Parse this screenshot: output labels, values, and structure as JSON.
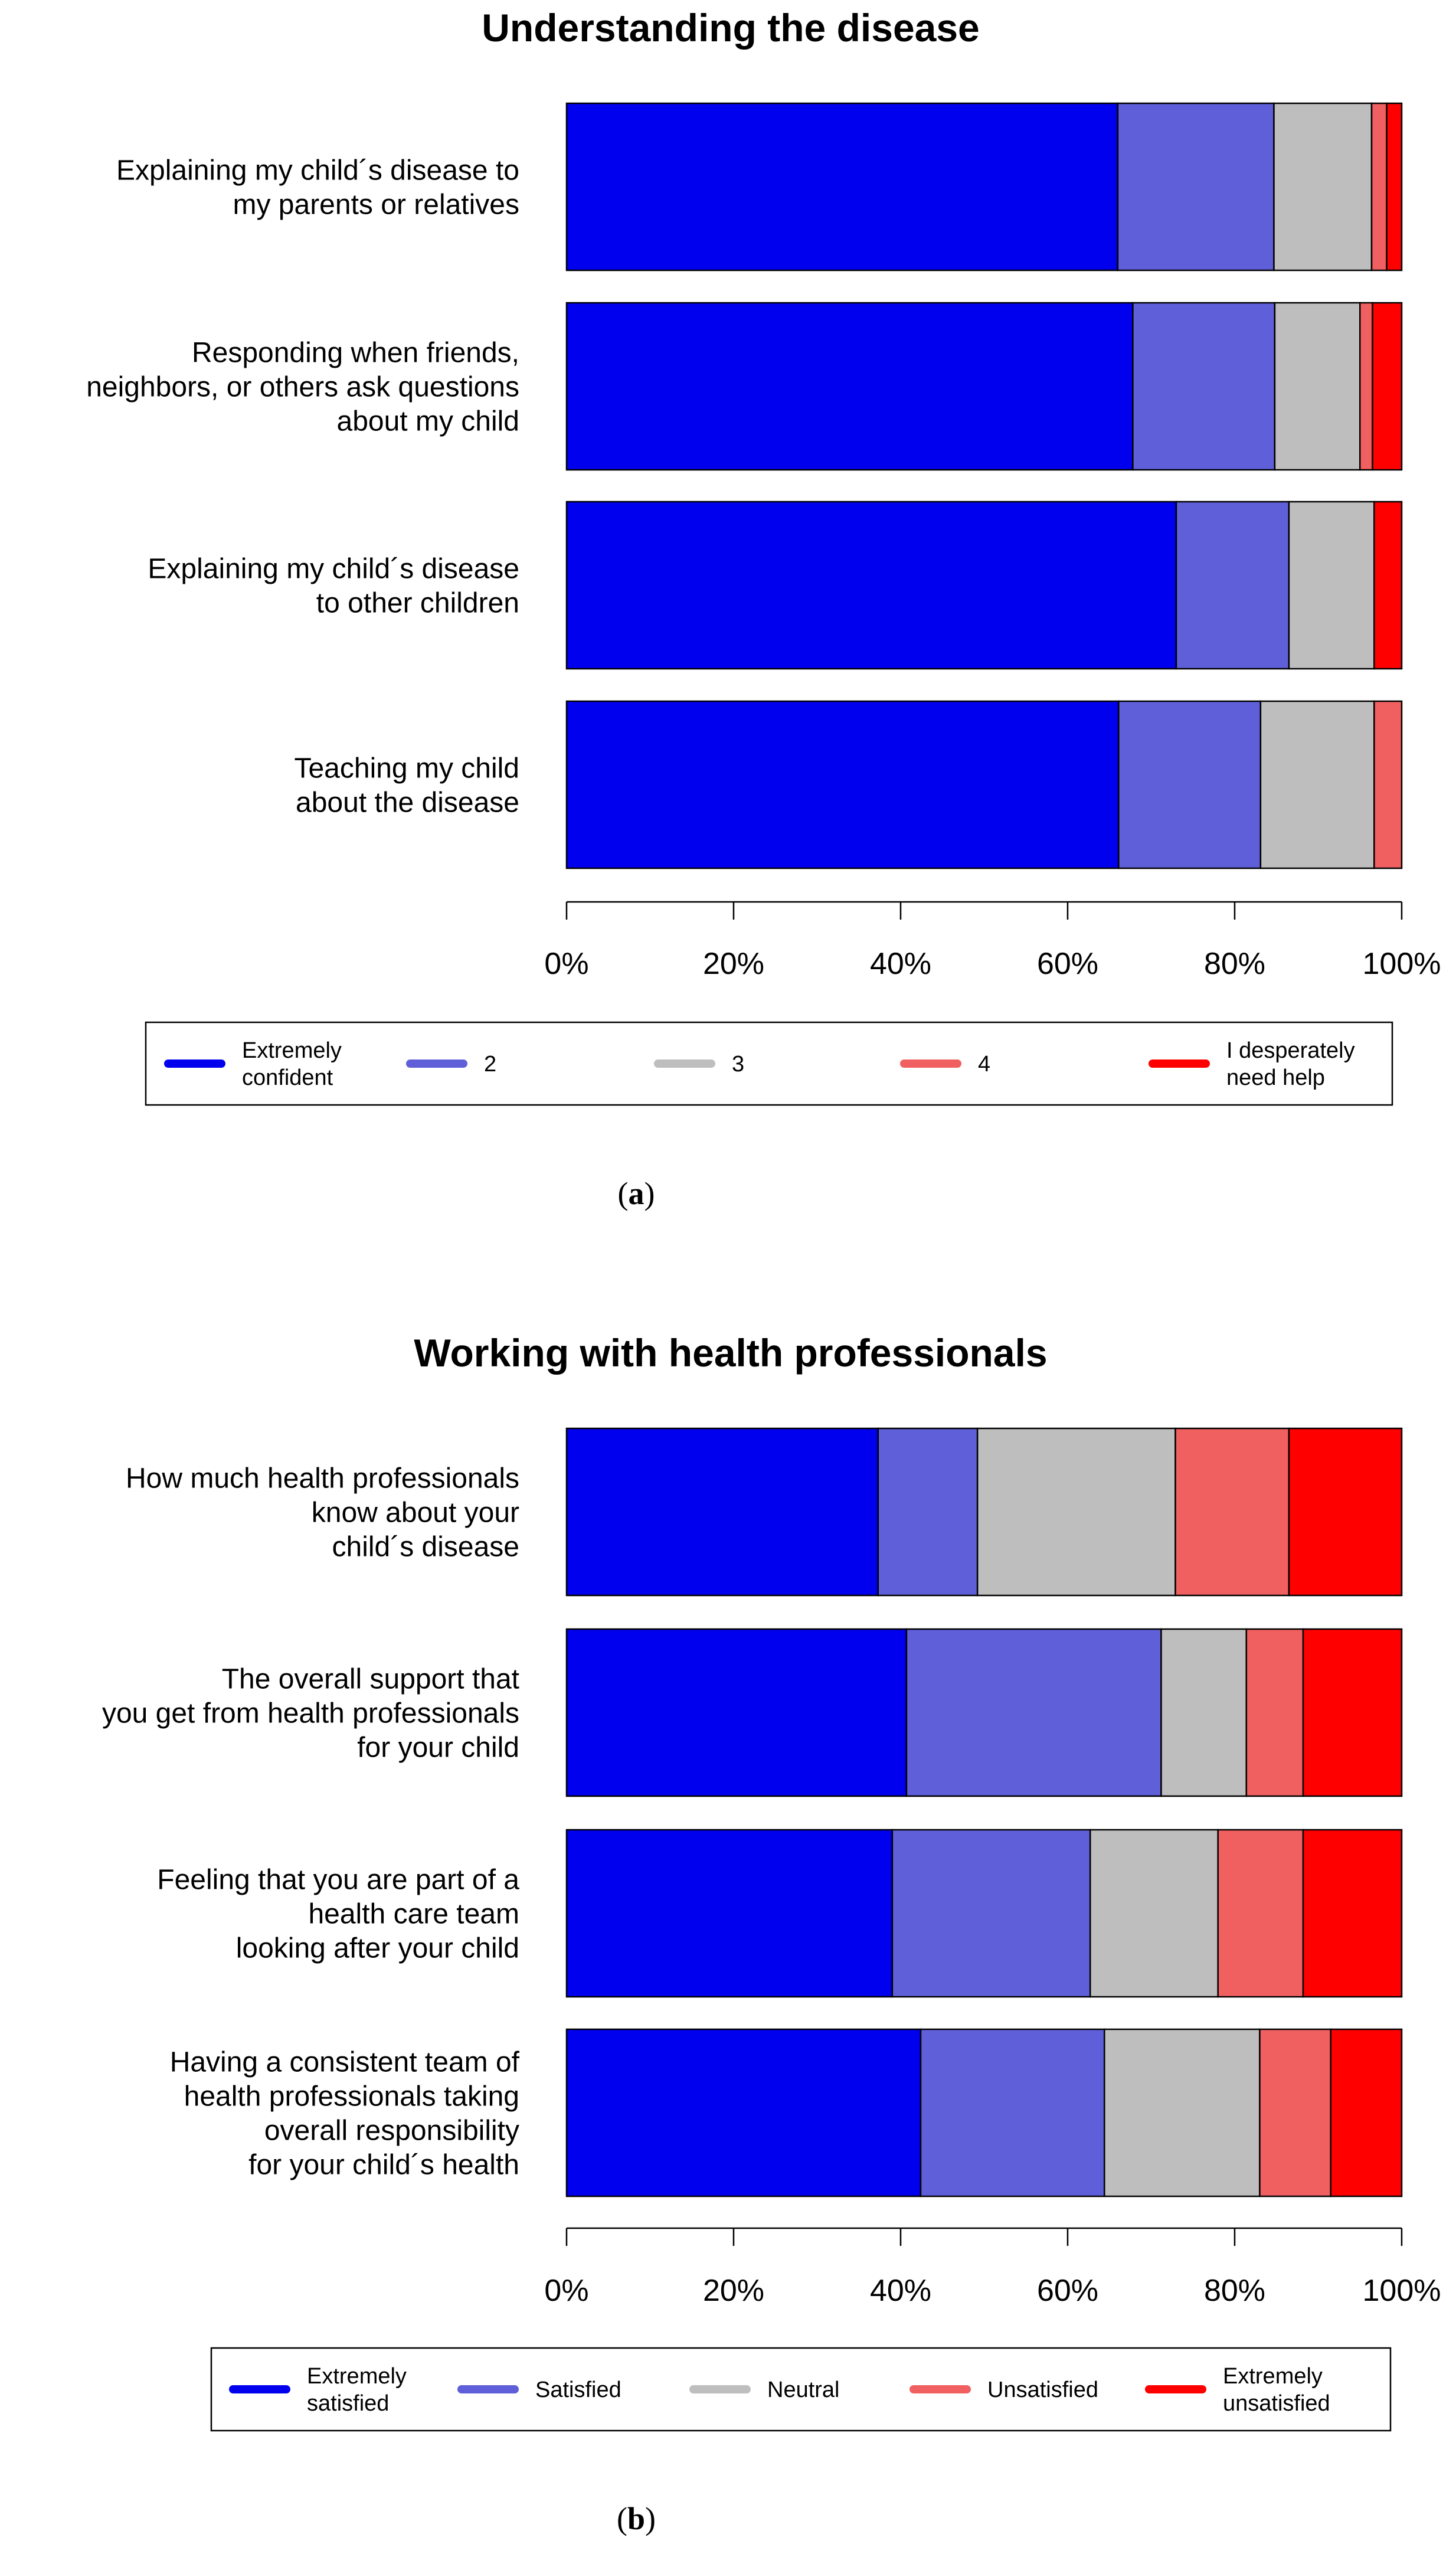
{
  "chart_data": [
    {
      "type": "bar",
      "orientation": "horizontal",
      "stacked": true,
      "title": "Understanding the disease",
      "caption_letter": "a",
      "categories": [
        "Explaining my child´s disease to my parents or relatives",
        "Responding when friends, neighbors, or others ask questions about my child",
        "Explaining my child´s disease to other children",
        "Teaching my child about the disease"
      ],
      "category_lines": [
        [
          "Explaining my child´s disease to",
          "my parents or relatives"
        ],
        [
          "Responding when friends,",
          "neighbors, or others ask questions",
          "about my child"
        ],
        [
          "Explaining my child´s disease",
          "to other children"
        ],
        [
          "Teaching my child",
          "about the disease"
        ]
      ],
      "series": [
        {
          "name": "Extremely confident",
          "legend_lines": [
            "Extremely",
            "confident"
          ],
          "color": "#0000ee",
          "values": [
            66,
            67.8,
            73,
            66.1
          ]
        },
        {
          "name": "2",
          "legend_lines": [
            "2"
          ],
          "color": "#5f5fd9",
          "values": [
            18.7,
            17,
            13.5,
            17
          ]
        },
        {
          "name": "3",
          "legend_lines": [
            "3"
          ],
          "color": "#bebebe",
          "values": [
            11.7,
            10.2,
            10.2,
            13.6
          ]
        },
        {
          "name": "4",
          "legend_lines": [
            "4"
          ],
          "color": "#f06060",
          "values": [
            1.8,
            1.5,
            0,
            3.3
          ]
        },
        {
          "name": "I desperately need help",
          "legend_lines": [
            "I desperately",
            "need help"
          ],
          "color": "#ff0000",
          "values": [
            1.8,
            3.5,
            3.3,
            0
          ]
        }
      ],
      "xlim": [
        0,
        100
      ],
      "xticks": [
        "0%",
        "20%",
        "40%",
        "60%",
        "80%",
        "100%"
      ],
      "xlabel": "",
      "ylabel": ""
    },
    {
      "type": "bar",
      "orientation": "horizontal",
      "stacked": true,
      "title": "Working with health professionals",
      "caption_letter": "b",
      "categories": [
        "How much health professionals know about your child´s disease",
        "The overall support that you get from health professionals for your child",
        "Feeling that you are part of a health care team looking after your child",
        "Having a consistent team of health professionals taking overall responsibility for your child´s health"
      ],
      "category_lines": [
        [
          "How much health professionals",
          "know about your",
          "child´s disease"
        ],
        [
          "The overall support that",
          "you get from health professionals",
          "for your child"
        ],
        [
          "Feeling that you are part of a",
          "health care team",
          "looking after your child"
        ],
        [
          "Having a consistent team of",
          "health professionals taking",
          "overall responsibility",
          "for your child´s health"
        ]
      ],
      "series": [
        {
          "name": "Extremely satisfied",
          "legend_lines": [
            "Extremely",
            "satisfied"
          ],
          "color": "#0000ee",
          "values": [
            37.3,
            40.7,
            39,
            42.4
          ]
        },
        {
          "name": "Satisfied",
          "legend_lines": [
            "Satisfied"
          ],
          "color": "#5f5fd9",
          "values": [
            11.9,
            30.5,
            23.7,
            22
          ]
        },
        {
          "name": "Neutral",
          "legend_lines": [
            "Neutral"
          ],
          "color": "#bebebe",
          "values": [
            23.7,
            10.2,
            15.3,
            18.6
          ]
        },
        {
          "name": "Unsatisfied",
          "legend_lines": [
            "Unsatisfied"
          ],
          "color": "#f06060",
          "values": [
            13.6,
            6.8,
            10.2,
            8.5
          ]
        },
        {
          "name": "Extremely unsatisfied",
          "legend_lines": [
            "Extremely",
            "unsatisfied"
          ],
          "color": "#ff0000",
          "values": [
            13.5,
            11.8,
            11.8,
            8.5
          ]
        }
      ],
      "xlim": [
        0,
        100
      ],
      "xticks": [
        "0%",
        "20%",
        "40%",
        "60%",
        "80%",
        "100%"
      ],
      "xlabel": "",
      "ylabel": ""
    }
  ]
}
